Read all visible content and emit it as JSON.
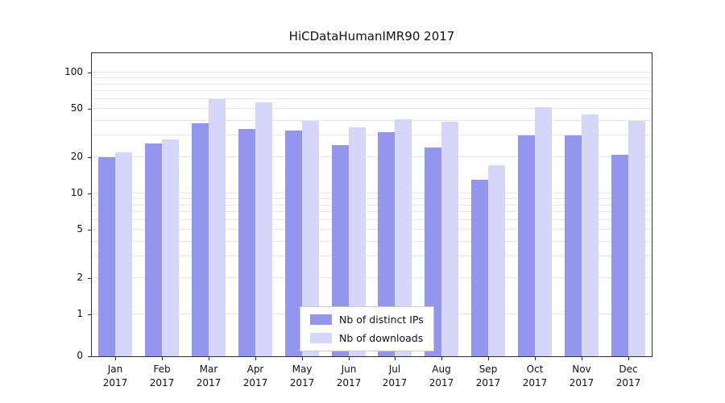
{
  "title": "HiCDataHumanIMR90 2017",
  "chart_data": {
    "type": "bar",
    "scale": "symlog",
    "title": "HiCDataHumanIMR90 2017",
    "xlabel": "",
    "ylabel": "",
    "categories": [
      "Jan",
      "Feb",
      "Mar",
      "Apr",
      "May",
      "Jun",
      "Jul",
      "Aug",
      "Sep",
      "Oct",
      "Nov",
      "Dec"
    ],
    "year": "2017",
    "series": [
      {
        "name": "Nb of distinct IPs",
        "color": "#9496ee",
        "values": [
          20,
          26,
          38,
          34,
          33,
          25,
          32,
          24,
          13,
          30,
          30,
          21
        ]
      },
      {
        "name": "Nb of downloads",
        "color": "#d6d7f8",
        "values": [
          22,
          28,
          60,
          57,
          40,
          35,
          41,
          39,
          17,
          52,
          45,
          40
        ]
      }
    ],
    "yticks": [
      0,
      1,
      2,
      5,
      10,
      20,
      50,
      100
    ],
    "ylim": [
      0,
      130
    ],
    "grid": "horizontal log minor gridlines",
    "legend_position": "lower center",
    "gridline_values": [
      1,
      2,
      3,
      4,
      5,
      6,
      7,
      8,
      9,
      10,
      20,
      30,
      40,
      50,
      60,
      70,
      80,
      90,
      100
    ]
  }
}
